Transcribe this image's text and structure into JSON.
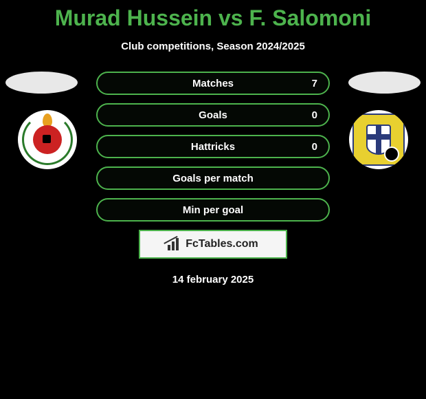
{
  "title": "Murad Hussein vs F. Salomoni",
  "subtitle": "Club competitions, Season 2024/2025",
  "stats": [
    {
      "label": "Matches",
      "right_value": "7"
    },
    {
      "label": "Goals",
      "right_value": "0"
    },
    {
      "label": "Hattricks",
      "right_value": "0"
    },
    {
      "label": "Goals per match",
      "right_value": ""
    },
    {
      "label": "Min per goal",
      "right_value": ""
    }
  ],
  "brand": "FcTables.com",
  "date": "14 february 2025",
  "colors": {
    "accent": "#4db34d",
    "background": "#000000",
    "text": "#ffffff",
    "brand_box_bg": "#f5f5f5",
    "brand_text": "#222222"
  }
}
